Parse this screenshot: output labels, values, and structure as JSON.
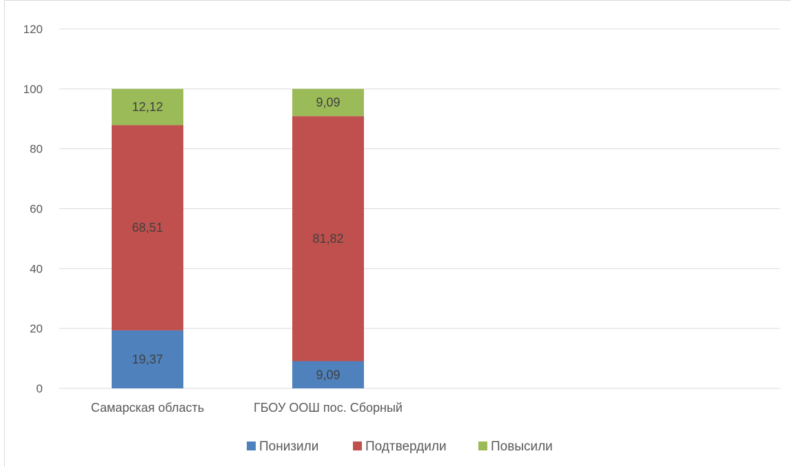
{
  "chart_data": {
    "type": "bar",
    "stacked": true,
    "categories": [
      "Самарская область",
      "ГБОУ ООШ пос. Сборный"
    ],
    "series": [
      {
        "name": "Понизили",
        "values": [
          19.37,
          9.09
        ],
        "labels": [
          "19,37",
          "9,09"
        ],
        "color": "#4f81bd"
      },
      {
        "name": "Подтвердили",
        "values": [
          68.51,
          81.82
        ],
        "labels": [
          "68,51",
          "81,82"
        ],
        "color": "#c0504d"
      },
      {
        "name": "Повысили",
        "values": [
          12.12,
          9.09
        ],
        "labels": [
          "12,12",
          "9,09"
        ],
        "color": "#9bbb59"
      }
    ],
    "yticks": [
      "0",
      "20",
      "40",
      "60",
      "80",
      "100",
      "120"
    ],
    "ylim": [
      0,
      120
    ],
    "grid": true,
    "legend_position": "bottom",
    "xlabel": "",
    "ylabel": "",
    "title": ""
  }
}
